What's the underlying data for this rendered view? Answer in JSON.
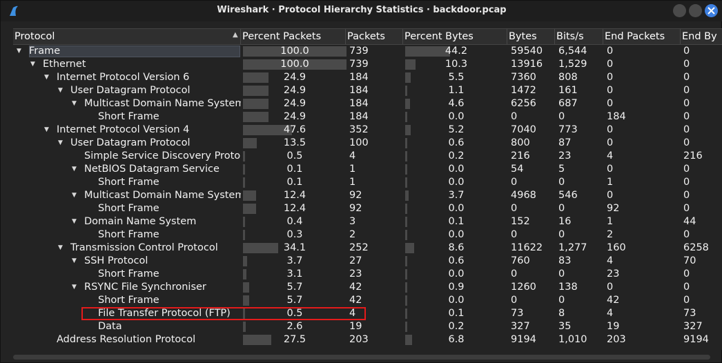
{
  "window": {
    "title": "Wireshark · Protocol Hierarchy Statistics · backdoor.pcap"
  },
  "columns": [
    "Protocol",
    "Percent Packets",
    "Packets",
    "Percent Bytes",
    "Bytes",
    "Bits/s",
    "End Packets",
    "End By"
  ],
  "rows": [
    {
      "protocol": "Frame",
      "percent_packets": "100.0",
      "packets": "739",
      "percent_bytes": "44.2",
      "bytes": "59540",
      "bits_s": "6,544",
      "end_packets": "0",
      "end_bytes": "0"
    },
    {
      "protocol": "Ethernet",
      "percent_packets": "100.0",
      "packets": "739",
      "percent_bytes": "10.3",
      "bytes": "13916",
      "bits_s": "1,529",
      "end_packets": "0",
      "end_bytes": "0"
    },
    {
      "protocol": "Internet Protocol Version 6",
      "percent_packets": "24.9",
      "packets": "184",
      "percent_bytes": "5.5",
      "bytes": "7360",
      "bits_s": "808",
      "end_packets": "0",
      "end_bytes": "0"
    },
    {
      "protocol": "User Datagram Protocol",
      "percent_packets": "24.9",
      "packets": "184",
      "percent_bytes": "1.1",
      "bytes": "1472",
      "bits_s": "161",
      "end_packets": "0",
      "end_bytes": "0"
    },
    {
      "protocol": "Multicast Domain Name System",
      "percent_packets": "24.9",
      "packets": "184",
      "percent_bytes": "4.6",
      "bytes": "6256",
      "bits_s": "687",
      "end_packets": "0",
      "end_bytes": "0"
    },
    {
      "protocol": "Short Frame",
      "percent_packets": "24.9",
      "packets": "184",
      "percent_bytes": "0.0",
      "bytes": "0",
      "bits_s": "0",
      "end_packets": "184",
      "end_bytes": "0"
    },
    {
      "protocol": "Internet Protocol Version 4",
      "percent_packets": "47.6",
      "packets": "352",
      "percent_bytes": "5.2",
      "bytes": "7040",
      "bits_s": "773",
      "end_packets": "0",
      "end_bytes": "0"
    },
    {
      "protocol": "User Datagram Protocol",
      "percent_packets": "13.5",
      "packets": "100",
      "percent_bytes": "0.6",
      "bytes": "800",
      "bits_s": "87",
      "end_packets": "0",
      "end_bytes": "0"
    },
    {
      "protocol": "Simple Service Discovery Protocol",
      "percent_packets": "0.5",
      "packets": "4",
      "percent_bytes": "0.2",
      "bytes": "216",
      "bits_s": "23",
      "end_packets": "4",
      "end_bytes": "216"
    },
    {
      "protocol": "NetBIOS Datagram Service",
      "percent_packets": "0.1",
      "packets": "1",
      "percent_bytes": "0.0",
      "bytes": "54",
      "bits_s": "5",
      "end_packets": "0",
      "end_bytes": "0"
    },
    {
      "protocol": "Short Frame",
      "percent_packets": "0.1",
      "packets": "1",
      "percent_bytes": "0.0",
      "bytes": "0",
      "bits_s": "0",
      "end_packets": "1",
      "end_bytes": "0"
    },
    {
      "protocol": "Multicast Domain Name System",
      "percent_packets": "12.4",
      "packets": "92",
      "percent_bytes": "3.7",
      "bytes": "4968",
      "bits_s": "546",
      "end_packets": "0",
      "end_bytes": "0"
    },
    {
      "protocol": "Short Frame",
      "percent_packets": "12.4",
      "packets": "92",
      "percent_bytes": "0.0",
      "bytes": "0",
      "bits_s": "0",
      "end_packets": "92",
      "end_bytes": "0"
    },
    {
      "protocol": "Domain Name System",
      "percent_packets": "0.4",
      "packets": "3",
      "percent_bytes": "0.1",
      "bytes": "152",
      "bits_s": "16",
      "end_packets": "1",
      "end_bytes": "44"
    },
    {
      "protocol": "Short Frame",
      "percent_packets": "0.3",
      "packets": "2",
      "percent_bytes": "0.0",
      "bytes": "0",
      "bits_s": "0",
      "end_packets": "2",
      "end_bytes": "0"
    },
    {
      "protocol": "Transmission Control Protocol",
      "percent_packets": "34.1",
      "packets": "252",
      "percent_bytes": "8.6",
      "bytes": "11622",
      "bits_s": "1,277",
      "end_packets": "160",
      "end_bytes": "6258"
    },
    {
      "protocol": "SSH Protocol",
      "percent_packets": "3.7",
      "packets": "27",
      "percent_bytes": "0.6",
      "bytes": "760",
      "bits_s": "83",
      "end_packets": "4",
      "end_bytes": "70"
    },
    {
      "protocol": "Short Frame",
      "percent_packets": "3.1",
      "packets": "23",
      "percent_bytes": "0.0",
      "bytes": "0",
      "bits_s": "0",
      "end_packets": "23",
      "end_bytes": "0"
    },
    {
      "protocol": "RSYNC File Synchroniser",
      "percent_packets": "5.7",
      "packets": "42",
      "percent_bytes": "0.9",
      "bytes": "1260",
      "bits_s": "138",
      "end_packets": "0",
      "end_bytes": "0"
    },
    {
      "protocol": "Short Frame",
      "percent_packets": "5.7",
      "packets": "42",
      "percent_bytes": "0.0",
      "bytes": "0",
      "bits_s": "0",
      "end_packets": "42",
      "end_bytes": "0"
    },
    {
      "protocol": "File Transfer Protocol (FTP)",
      "percent_packets": "0.5",
      "packets": "4",
      "percent_bytes": "0.1",
      "bytes": "73",
      "bits_s": "8",
      "end_packets": "4",
      "end_bytes": "73"
    },
    {
      "protocol": "Data",
      "percent_packets": "2.6",
      "packets": "19",
      "percent_bytes": "0.2",
      "bytes": "327",
      "bits_s": "35",
      "end_packets": "19",
      "end_bytes": "327"
    },
    {
      "protocol": "Address Resolution Protocol",
      "percent_packets": "27.5",
      "packets": "203",
      "percent_bytes": "6.8",
      "bytes": "9194",
      "bits_s": "1,010",
      "end_packets": "203",
      "end_bytes": "9194"
    }
  ],
  "tree": {
    "levels": [
      0,
      1,
      2,
      3,
      4,
      5,
      2,
      3,
      4,
      4,
      5,
      4,
      5,
      4,
      5,
      3,
      4,
      5,
      4,
      5,
      5,
      5,
      2
    ],
    "expanded": [
      true,
      true,
      true,
      true,
      true,
      false,
      true,
      true,
      false,
      true,
      false,
      true,
      false,
      true,
      false,
      true,
      true,
      false,
      true,
      false,
      false,
      false,
      false
    ],
    "selected_row": 0,
    "highlighted_row": 20
  },
  "colors": {
    "highlight": "#e41b1b",
    "bar": "#4a4a4a",
    "close_button": "#3d7fe0"
  }
}
